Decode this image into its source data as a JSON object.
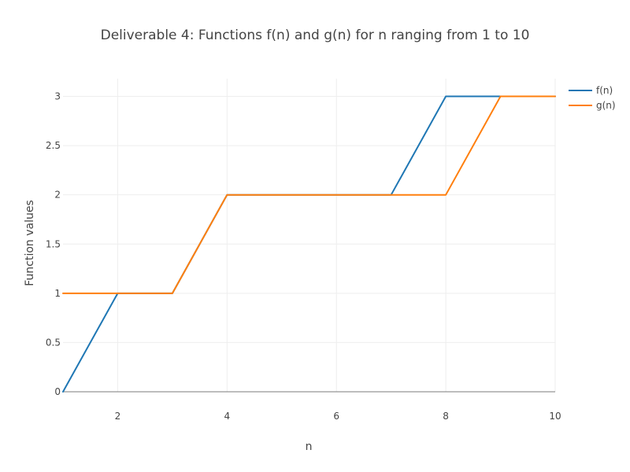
{
  "chart_data": {
    "type": "line",
    "title": "Deliverable 4: Functions f(n) and g(n) for n ranging from 1 to 10",
    "xlabel": "n",
    "ylabel": "Function values",
    "x": [
      1,
      2,
      3,
      4,
      5,
      6,
      7,
      8,
      9,
      10
    ],
    "xlim": [
      1,
      10
    ],
    "ylim": [
      0,
      3.18
    ],
    "xticks": [
      2,
      4,
      6,
      8,
      10
    ],
    "yticks": [
      0,
      0.5,
      1,
      1.5,
      2,
      2.5,
      3
    ],
    "xtick_labels": [
      "2",
      "4",
      "6",
      "8",
      "10"
    ],
    "ytick_labels": [
      "0",
      "0.5",
      "1",
      "1.5",
      "2",
      "2.5",
      "3"
    ],
    "grid": true,
    "legend_position": "top-right",
    "series": [
      {
        "name": "f(n)",
        "color": "#1f77b4",
        "values": [
          0,
          1,
          1,
          2,
          2,
          2,
          2,
          3,
          3,
          3
        ]
      },
      {
        "name": "g(n)",
        "color": "#ff7f0e",
        "values": [
          1,
          1,
          1,
          2,
          2,
          2,
          2,
          2,
          3,
          3
        ]
      }
    ]
  }
}
